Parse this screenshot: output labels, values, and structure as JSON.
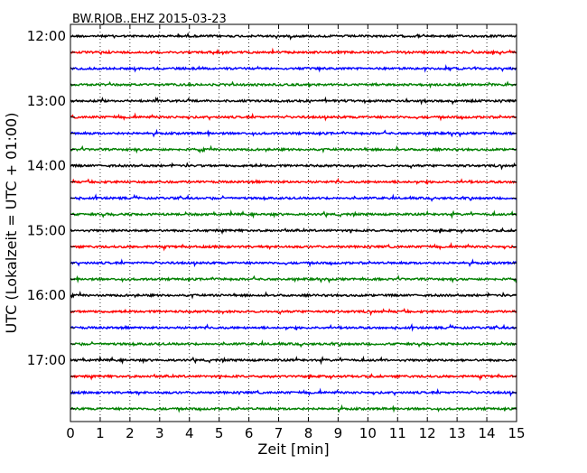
{
  "chart_data": {
    "type": "line",
    "title": "BW.RJOB..EHZ 2015-03-23",
    "xlabel": "Zeit  [min]",
    "ylabel": "UTC (Lokalzeit = UTC + 01:00)",
    "xlim": [
      0,
      15
    ],
    "x_ticks": [
      "0",
      "1",
      "2",
      "3",
      "4",
      "5",
      "6",
      "7",
      "8",
      "9",
      "10",
      "11",
      "12",
      "13",
      "14",
      "15"
    ],
    "y_hour_labels": [
      "12:00",
      "13:00",
      "14:00",
      "15:00",
      "16:00",
      "17:00"
    ],
    "grid": "vertical-dotted",
    "trace_start_offsets_min": [
      0,
      15,
      30,
      45,
      60,
      75,
      90,
      105,
      120,
      135,
      150,
      165,
      180,
      195,
      210,
      225,
      240,
      255,
      270,
      285,
      300,
      315,
      330,
      345
    ],
    "colors": [
      "#000000",
      "#ff0000",
      "#0000ff",
      "#008000"
    ],
    "series": [
      {
        "start": "12:00",
        "color": "#000000"
      },
      {
        "start": "12:15",
        "color": "#ff0000"
      },
      {
        "start": "12:30",
        "color": "#0000ff"
      },
      {
        "start": "12:45",
        "color": "#008000"
      },
      {
        "start": "13:00",
        "color": "#000000"
      },
      {
        "start": "13:15",
        "color": "#ff0000"
      },
      {
        "start": "13:30",
        "color": "#0000ff"
      },
      {
        "start": "13:45",
        "color": "#008000"
      },
      {
        "start": "14:00",
        "color": "#000000"
      },
      {
        "start": "14:15",
        "color": "#ff0000"
      },
      {
        "start": "14:30",
        "color": "#0000ff"
      },
      {
        "start": "14:45",
        "color": "#008000"
      },
      {
        "start": "15:00",
        "color": "#000000"
      },
      {
        "start": "15:15",
        "color": "#ff0000"
      },
      {
        "start": "15:30",
        "color": "#0000ff"
      },
      {
        "start": "15:45",
        "color": "#008000"
      },
      {
        "start": "16:00",
        "color": "#000000"
      },
      {
        "start": "16:15",
        "color": "#ff0000"
      },
      {
        "start": "16:30",
        "color": "#0000ff"
      },
      {
        "start": "16:45",
        "color": "#008000"
      },
      {
        "start": "17:00",
        "color": "#000000"
      },
      {
        "start": "17:15",
        "color": "#ff0000"
      },
      {
        "start": "17:30",
        "color": "#0000ff"
      },
      {
        "start": "17:45",
        "color": "#008000"
      }
    ]
  }
}
